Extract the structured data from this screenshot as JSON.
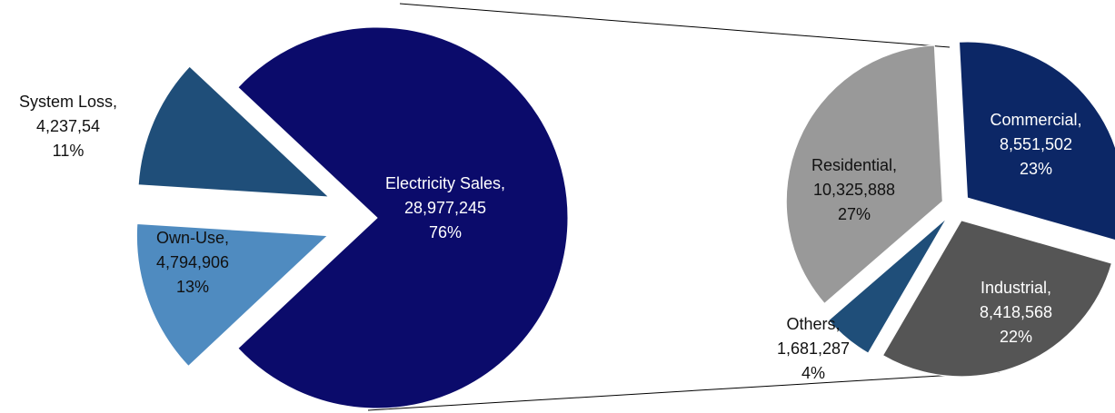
{
  "chart_data": [
    {
      "type": "pie",
      "categories": [
        "Electricity Sales,",
        "Own-Use,",
        "System Loss,"
      ],
      "amounts": [
        "28,977,245",
        "4,794,906",
        "4,237,54"
      ],
      "values": [
        76,
        13,
        11
      ],
      "value_labels": [
        "76%",
        "13%",
        "11%"
      ],
      "colors": [
        "#0b0b6b",
        "#4f8bc0",
        "#1f4e79"
      ]
    },
    {
      "type": "pie",
      "categories": [
        "Commercial,",
        "Industrial,",
        "Others,",
        "Residential,"
      ],
      "amounts": [
        "8,551,502",
        "8,418,568",
        "1,681,287",
        "10,325,888"
      ],
      "values": [
        23,
        22,
        4,
        27
      ],
      "value_labels": [
        "23%",
        "22%",
        "4%",
        "27%"
      ],
      "colors": [
        "#0c2766",
        "#555555",
        "#1f4e79",
        "#999999"
      ]
    }
  ]
}
